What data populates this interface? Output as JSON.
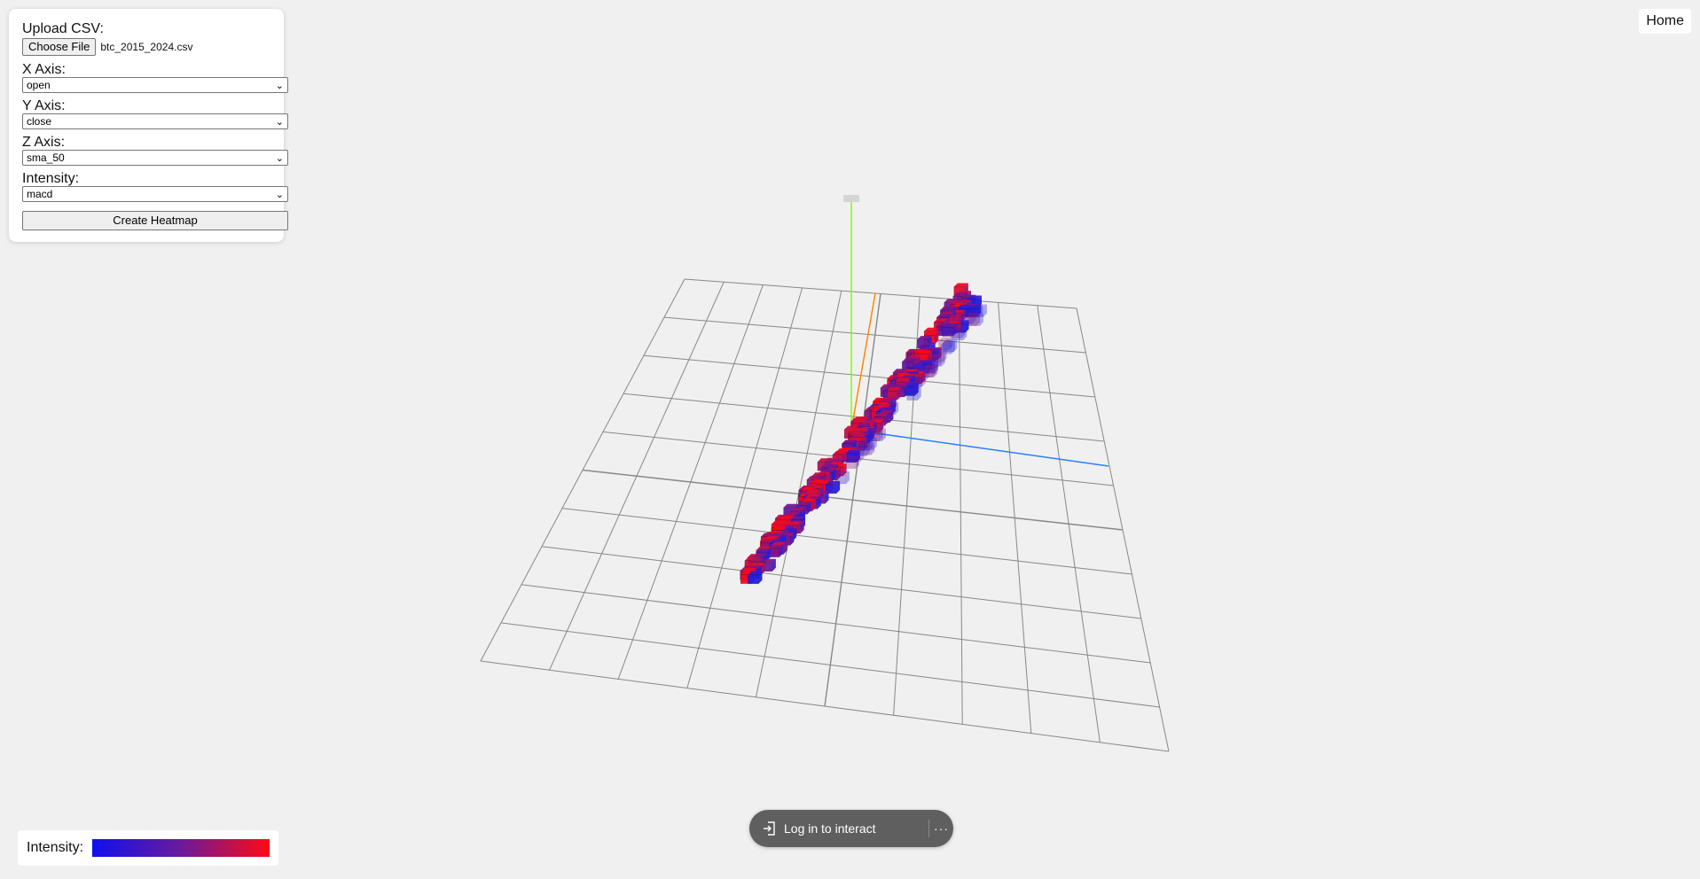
{
  "controls": {
    "upload_label": "Upload CSV:",
    "choose_file_label": "Choose File",
    "file_name": "btc_2015_2024.csv",
    "x_axis": {
      "label": "X Axis:",
      "value": "open"
    },
    "y_axis": {
      "label": "Y Axis:",
      "value": "close"
    },
    "z_axis": {
      "label": "Z Axis:",
      "value": "sma_50"
    },
    "intensity": {
      "label": "Intensity:",
      "value": "macd"
    },
    "create_button_label": "Create Heatmap"
  },
  "nav": {
    "home_label": "Home"
  },
  "legend": {
    "label": "Intensity:",
    "gradient_low_color": "#1010f0",
    "gradient_mid_color": "#6a1a9a",
    "gradient_high_color": "#ff0a14"
  },
  "login": {
    "label": "Log in to interact",
    "more_label": "···"
  },
  "colors": {
    "background": "#f0f0f0",
    "grid_line": "#888888",
    "axis_y": "#7fff00",
    "axis_x": "#ff8800",
    "axis_z": "#2b7fff"
  },
  "icons": {
    "login": "login-arrow-icon",
    "more": "ellipsis-icon",
    "select": "chevron-down-icon"
  }
}
